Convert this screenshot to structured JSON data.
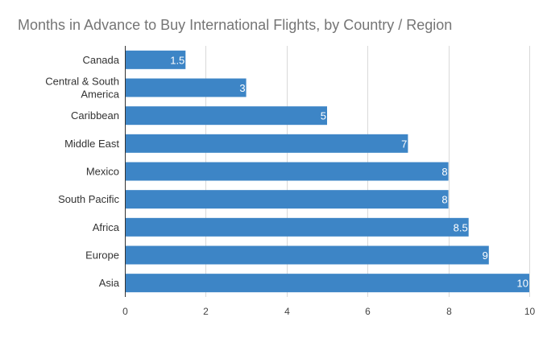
{
  "chart_data": {
    "type": "bar",
    "orientation": "horizontal",
    "title": "Months in Advance to Buy International Flights, by Country / Region",
    "categories": [
      "Canada",
      "Central & South America",
      "Caribbean",
      "Middle East",
      "Mexico",
      "South Pacific",
      "Africa",
      "Europe",
      "Asia"
    ],
    "category_lines": [
      [
        "Canada"
      ],
      [
        "Central & South",
        "America"
      ],
      [
        "Caribbean"
      ],
      [
        "Middle East"
      ],
      [
        "Mexico"
      ],
      [
        "South Pacific"
      ],
      [
        "Africa"
      ],
      [
        "Europe"
      ],
      [
        "Asia"
      ]
    ],
    "values": [
      1.5,
      3,
      5,
      7,
      8,
      8,
      8.5,
      9,
      10
    ],
    "value_labels": [
      "1.5",
      "3",
      "5",
      "7",
      "8",
      "8",
      "8.5",
      "9",
      "10"
    ],
    "xlim": [
      0,
      10
    ],
    "xticks": [
      0,
      2,
      4,
      6,
      8,
      10
    ],
    "xlabel": "",
    "ylabel": "",
    "grid": true,
    "legend": "none",
    "colors": {
      "bar": "#3d85c6",
      "grid": "#d9d9d9",
      "title": "#757575"
    }
  }
}
